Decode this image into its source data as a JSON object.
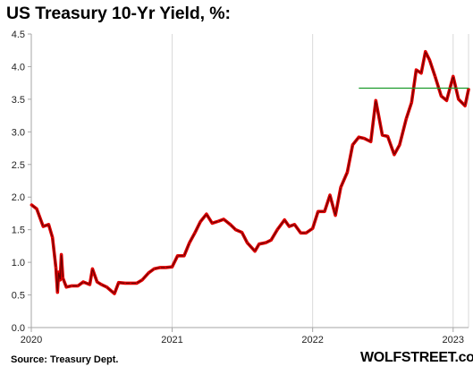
{
  "chart_data": {
    "type": "line",
    "title": "US Treasury 10-Yr Yield, %:",
    "xlabel": "",
    "ylabel": "",
    "ylim": [
      0,
      4.5
    ],
    "xlim": [
      "2020-01-01",
      "2023-02-10"
    ],
    "yticks": [
      "0.0",
      "0.5",
      "1.0",
      "1.5",
      "2.0",
      "2.5",
      "3.0",
      "3.5",
      "4.0",
      "4.5"
    ],
    "xticks": [
      {
        "label": "2020",
        "date": "2020-01-01"
      },
      {
        "label": "2021",
        "date": "2021-01-01"
      },
      {
        "label": "2022",
        "date": "2022-01-01"
      },
      {
        "label": "2023",
        "date": "2023-01-01"
      }
    ],
    "grid": "vertical",
    "series": [
      {
        "color": "#e00000",
        "x": [
          "2020-01-02",
          "2020-01-15",
          "2020-02-01",
          "2020-02-15",
          "2020-02-25",
          "2020-03-05",
          "2020-03-09",
          "2020-03-12",
          "2020-03-16",
          "2020-03-19",
          "2020-03-23",
          "2020-04-01",
          "2020-04-15",
          "2020-05-01",
          "2020-05-15",
          "2020-06-01",
          "2020-06-08",
          "2020-06-20",
          "2020-07-01",
          "2020-07-15",
          "2020-08-04",
          "2020-08-15",
          "2020-09-01",
          "2020-09-15",
          "2020-10-01",
          "2020-10-15",
          "2020-11-01",
          "2020-11-15",
          "2020-12-01",
          "2020-12-15",
          "2021-01-01",
          "2021-01-15",
          "2021-02-01",
          "2021-02-15",
          "2021-03-01",
          "2021-03-15",
          "2021-03-31",
          "2021-04-15",
          "2021-05-01",
          "2021-05-15",
          "2021-06-01",
          "2021-06-15",
          "2021-07-01",
          "2021-07-15",
          "2021-08-04",
          "2021-08-15",
          "2021-09-01",
          "2021-09-15",
          "2021-10-01",
          "2021-10-20",
          "2021-11-01",
          "2021-11-15",
          "2021-12-01",
          "2021-12-15",
          "2022-01-01",
          "2022-01-15",
          "2022-02-01",
          "2022-02-15",
          "2022-03-01",
          "2022-03-15",
          "2022-04-01",
          "2022-04-15",
          "2022-05-01",
          "2022-05-15",
          "2022-06-01",
          "2022-06-14",
          "2022-07-01",
          "2022-07-15",
          "2022-08-01",
          "2022-08-15",
          "2022-09-01",
          "2022-09-15",
          "2022-09-27",
          "2022-10-10",
          "2022-10-21",
          "2022-11-01",
          "2022-11-15",
          "2022-12-01",
          "2022-12-15",
          "2023-01-01",
          "2023-01-15",
          "2023-02-01",
          "2023-02-10"
        ],
        "values": [
          1.88,
          1.82,
          1.55,
          1.58,
          1.38,
          0.92,
          0.54,
          0.85,
          0.73,
          1.12,
          0.76,
          0.62,
          0.64,
          0.64,
          0.7,
          0.66,
          0.9,
          0.7,
          0.66,
          0.62,
          0.52,
          0.69,
          0.68,
          0.68,
          0.68,
          0.73,
          0.84,
          0.9,
          0.92,
          0.92,
          0.93,
          1.1,
          1.1,
          1.3,
          1.45,
          1.62,
          1.74,
          1.6,
          1.63,
          1.66,
          1.58,
          1.5,
          1.46,
          1.3,
          1.17,
          1.28,
          1.3,
          1.34,
          1.5,
          1.65,
          1.55,
          1.58,
          1.45,
          1.45,
          1.52,
          1.78,
          1.78,
          2.03,
          1.72,
          2.15,
          2.38,
          2.8,
          2.92,
          2.9,
          2.85,
          3.48,
          2.95,
          2.93,
          2.65,
          2.8,
          3.2,
          3.45,
          3.95,
          3.9,
          4.23,
          4.1,
          3.85,
          3.55,
          3.48,
          3.85,
          3.5,
          3.4,
          3.65
        ]
      }
    ],
    "annotations": [
      {
        "type": "horizontal-line",
        "color": "#1a9a2a",
        "y": 3.67,
        "x_from": "2022-05-01",
        "x_to": "2023-02-10"
      }
    ],
    "source": "Source: Treasury Dept.",
    "watermark": "WOLFSTREET.com"
  }
}
